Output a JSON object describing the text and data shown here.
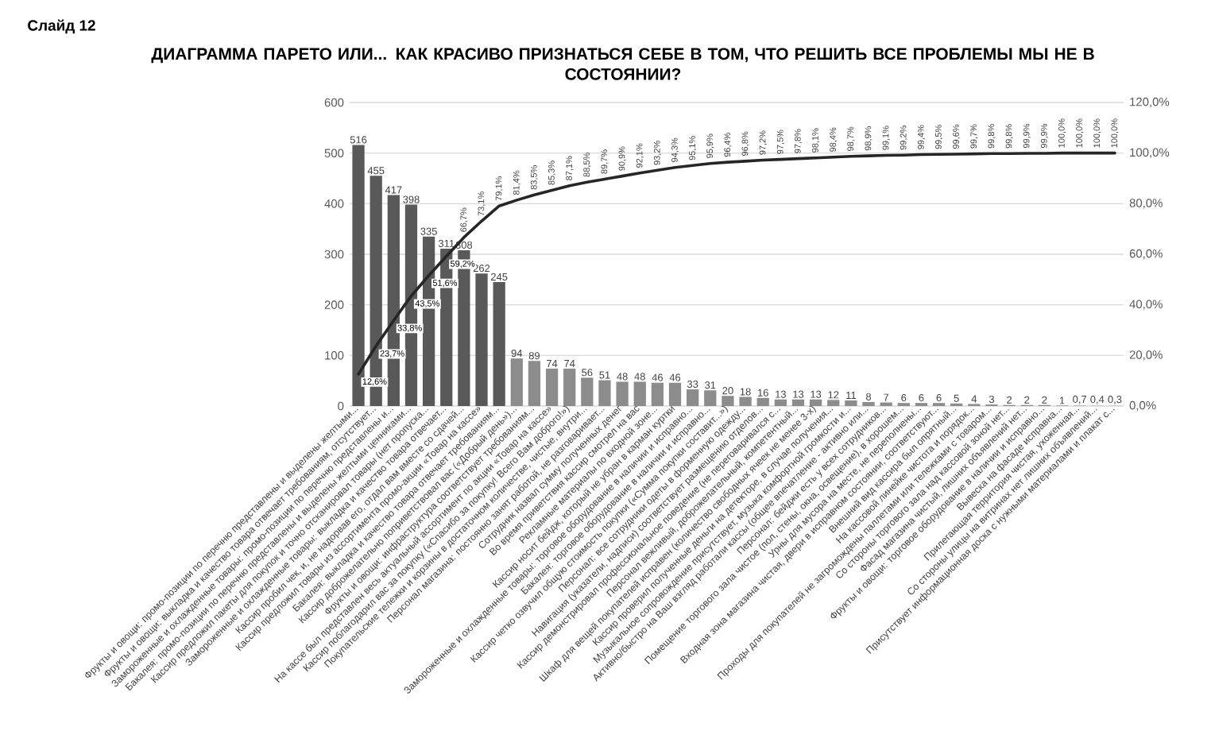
{
  "chart_data": {
    "type": "bar",
    "title": "ДИАГРАММА ПАРЕТО ИЛИ... КАК КРАСИВО ПРИЗНАТЬСЯ СЕБЕ В ТОМ, ЧТО РЕШИТЬ ВСЕ ПРОБЛЕМЫ МЫ НЕ В СОСТОЯНИИ?",
    "annotations": [
      "Слайд 12"
    ],
    "categories": [
      "Фрукты и овощи: промо-позиции по перечню представлены и выделены желтыми...",
      "Фрукты и овощи: выкладка и качество товара отвечает требованиям, отсутствует...",
      "Замороженные и охлажденные товары: промо-позиции по перечню представлены и...",
      "Бакалея: промо-позиции по перечню представлены и выделены желтыми ценниками...",
      "Кассир предложил пакеты для покупок и точно отсканировал товары (нет пропуска...",
      "Замороженные и охлажденные товары: выкладка и качество товара отвечает...",
      "Кассир пробил чек, и, не надорвав его, отдал вам вместе со сдачей...",
      "Кассир предложил товары из ассортимента промо-акции «Товар на кассе»",
      "Бакалея: выкладка и качество товара отвечает требованиям...",
      "Кассир доброжелательно поприветствовал вас («Добрый день»)...",
      "Фрукты и овощи: инфраструктура соответствует требованиям...",
      "На кассе был представлен весь актуальный ассортимент по акции «Товар на кассе»",
      "Кассир поблагодарил вас за покупку («Спасибо за покупку! Всего Вам доброго!»)",
      "Покупательские тележки и корзины в достаточном количестве, чистые, внутри...",
      "Персонал магазина: постоянно занят работой, не разговаривает...",
      "Сотрудник назвал сумму полученных денег",
      "Во время приветствия кассир смотрел на вас",
      "Рекламные материалы по входной зоне...",
      "Кассир носит бейдж, который не убран в карман куртки",
      "Замороженные и охлажденные товары: торговое оборудование в наличии и исправно...",
      "Бакалея: торговое оборудование в наличии и исправно...",
      "Кассир четко озвучил общую стоимость покупки («Сумма покупки составит...»)",
      "Персонал: все сотрудники одеты в форменную одежду...",
      "Навигация (указатели, надписи) соответствует размещению отделов...",
      "Кассир демонстрировал профессиональное поведение (не переговаривался с...",
      "Персонал вежливый, доброжелательный, компетентный...",
      "Шкаф для вещей покупателей исправен (количество свободных ячеек не менее 3-х)",
      "Кассир проверил полученные деньги на детекторе, в случае получения...",
      "Музыкальное сопровождение присутствует, музыка комфортной громкости и...",
      "Активно/быстро на Ваш взгляд работали кассы (общее впечатление - активно или...",
      "Персонал: бейджи есть у всех сотрудников...",
      "Помещение торгового зала чистое (пол, стены, окна, освещение), в хорошем...",
      "Урны для мусора на месте, не переполнены...",
      "Входная зона магазина чистая, двери в исправном состоянии, соответствуют...",
      "Внешний вид кассира был опрятный...",
      "На кассовой линейке чистота и порядок...",
      "Проходы для покупателей не загромождены паллетами или тележками с товаром...",
      "Со стороны торгового зала над кассовой зоной нет...",
      "Фасад магазина чистый, лишних объявлений нет...",
      "Фрукты и овощи: торговое оборудование в наличии и исправно...",
      "Вывеска на фасаде исправна...",
      "Прилегающая территория чистая, ухоженная...",
      "Со стороны улицы на витринах нет лишних объявлений...",
      "Присутствует информационная доска с нужными материалами и плакат с..."
    ],
    "series": [
      {
        "values": [
          516,
          455,
          417,
          398,
          335,
          311,
          308,
          262,
          245,
          94,
          89,
          74,
          74,
          56,
          51,
          48,
          48,
          46,
          46,
          33,
          31,
          20,
          18,
          16,
          13,
          13,
          13,
          12,
          11,
          8,
          7,
          6,
          6,
          6,
          5,
          4,
          3,
          2,
          2,
          2,
          1,
          0.7,
          0.4,
          0.3
        ],
        "colors": [
          "#595959",
          "#595959",
          "#595959",
          "#595959",
          "#595959",
          "#595959",
          "#595959",
          "#595959",
          "#595959",
          "#8c8c8c",
          "#8c8c8c",
          "#8c8c8c",
          "#8c8c8c",
          "#8c8c8c",
          "#8c8c8c",
          "#8c8c8c",
          "#8c8c8c",
          "#8c8c8c",
          "#8c8c8c",
          "#8c8c8c",
          "#8c8c8c",
          "#8c8c8c",
          "#8c8c8c",
          "#8c8c8c",
          "#8c8c8c",
          "#8c8c8c",
          "#8c8c8c",
          "#8c8c8c",
          "#8c8c8c",
          "#8c8c8c",
          "#8c8c8c",
          "#8c8c8c",
          "#8c8c8c",
          "#8c8c8c",
          "#8c8c8c",
          "#8c8c8c",
          "#8c8c8c",
          "#8c8c8c",
          "#8c8c8c",
          "#8c8c8c",
          "#8c8c8c",
          "#8c8c8c",
          "#8c8c8c",
          "#8c8c8c"
        ],
        "value_labels": [
          "516",
          "455",
          "417",
          "398",
          "335",
          "311",
          "308",
          "262",
          "245",
          "94",
          "89",
          "74",
          "74",
          "56",
          "51",
          "48",
          "48",
          "46",
          "46",
          "33",
          "31",
          "20",
          "18",
          "16",
          "13",
          "13",
          "13",
          "12",
          "11",
          "8",
          "7",
          "6",
          "6",
          "6",
          "5",
          "4",
          "3",
          "2",
          "2",
          "2",
          "1",
          "0,7",
          "0,4",
          "0,3"
        ]
      },
      {
        "type": "line",
        "axis": "y2",
        "color": "#262626",
        "values": [
          12.6,
          23.7,
          33.8,
          43.5,
          51.6,
          59.2,
          66.7,
          73.1,
          79.1,
          81.4,
          83.5,
          85.3,
          87.1,
          88.5,
          89.7,
          90.9,
          92.1,
          93.2,
          94.3,
          95.1,
          95.9,
          96.4,
          96.8,
          97.2,
          97.5,
          97.8,
          98.1,
          98.4,
          98.7,
          98.9,
          99.1,
          99.2,
          99.4,
          99.5,
          99.6,
          99.7,
          99.8,
          99.8,
          99.9,
          99.9,
          100.0,
          100.0,
          100.0,
          100.0
        ],
        "value_labels": [
          "12,6%",
          "23,7%",
          "33,8%",
          "43,5%",
          "51,6%",
          "59,2%",
          "66,7%",
          "73,1%",
          "79,1%",
          "81,4%",
          "83,5%",
          "85,3%",
          "87,1%",
          "88,5%",
          "89,7%",
          "90,9%",
          "92,1%",
          "93,2%",
          "94,3%",
          "95,1%",
          "95,9%",
          "96,4%",
          "96,8%",
          "97,2%",
          "97,5%",
          "97,8%",
          "98,1%",
          "98,4%",
          "98,7%",
          "98,9%",
          "99,1%",
          "99,2%",
          "99,4%",
          "99,5%",
          "99,6%",
          "99,7%",
          "99,8%",
          "99,8%",
          "99,9%",
          "99,9%",
          "100,0%",
          "100,0%",
          "100,0%",
          "100,0%"
        ]
      }
    ],
    "ylim": [
      0,
      600
    ],
    "yticks": [
      0,
      100,
      200,
      300,
      400,
      500,
      600
    ],
    "y2lim": [
      0,
      120
    ],
    "y2ticks": [
      {
        "value": 0,
        "label": "0,0%"
      },
      {
        "value": 20,
        "label": "20,0%"
      },
      {
        "value": 40,
        "label": "40,0%"
      },
      {
        "value": 60,
        "label": "60,0%"
      },
      {
        "value": 80,
        "label": "80,0%"
      },
      {
        "value": 100,
        "label": "100,0%"
      },
      {
        "value": 120,
        "label": "120,0%"
      }
    ],
    "grid": "y"
  }
}
